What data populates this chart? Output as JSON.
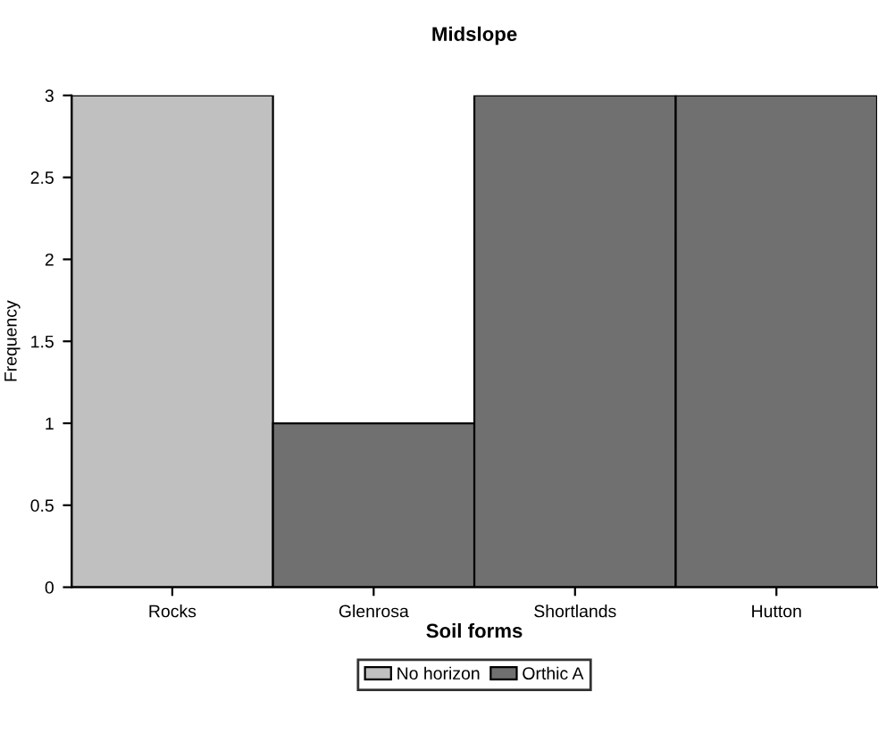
{
  "chart_data": {
    "type": "bar",
    "title": "Midslope",
    "xlabel": "Soil forms",
    "ylabel": "Frequency",
    "categories": [
      "Rocks",
      "Glenrosa",
      "Shortlands",
      "Hutton"
    ],
    "stacked": true,
    "series": [
      {
        "name": "No horizon",
        "color": "#c0c0c0",
        "values": [
          3,
          null,
          null,
          null
        ]
      },
      {
        "name": "Orthic A",
        "color": "#707070",
        "values": [
          null,
          1,
          3,
          3
        ]
      }
    ],
    "ylim": [
      0,
      3
    ],
    "yticks": [
      0,
      0.5,
      1,
      1.5,
      2,
      2.5,
      3
    ],
    "grid": false,
    "legend": "bottom"
  }
}
